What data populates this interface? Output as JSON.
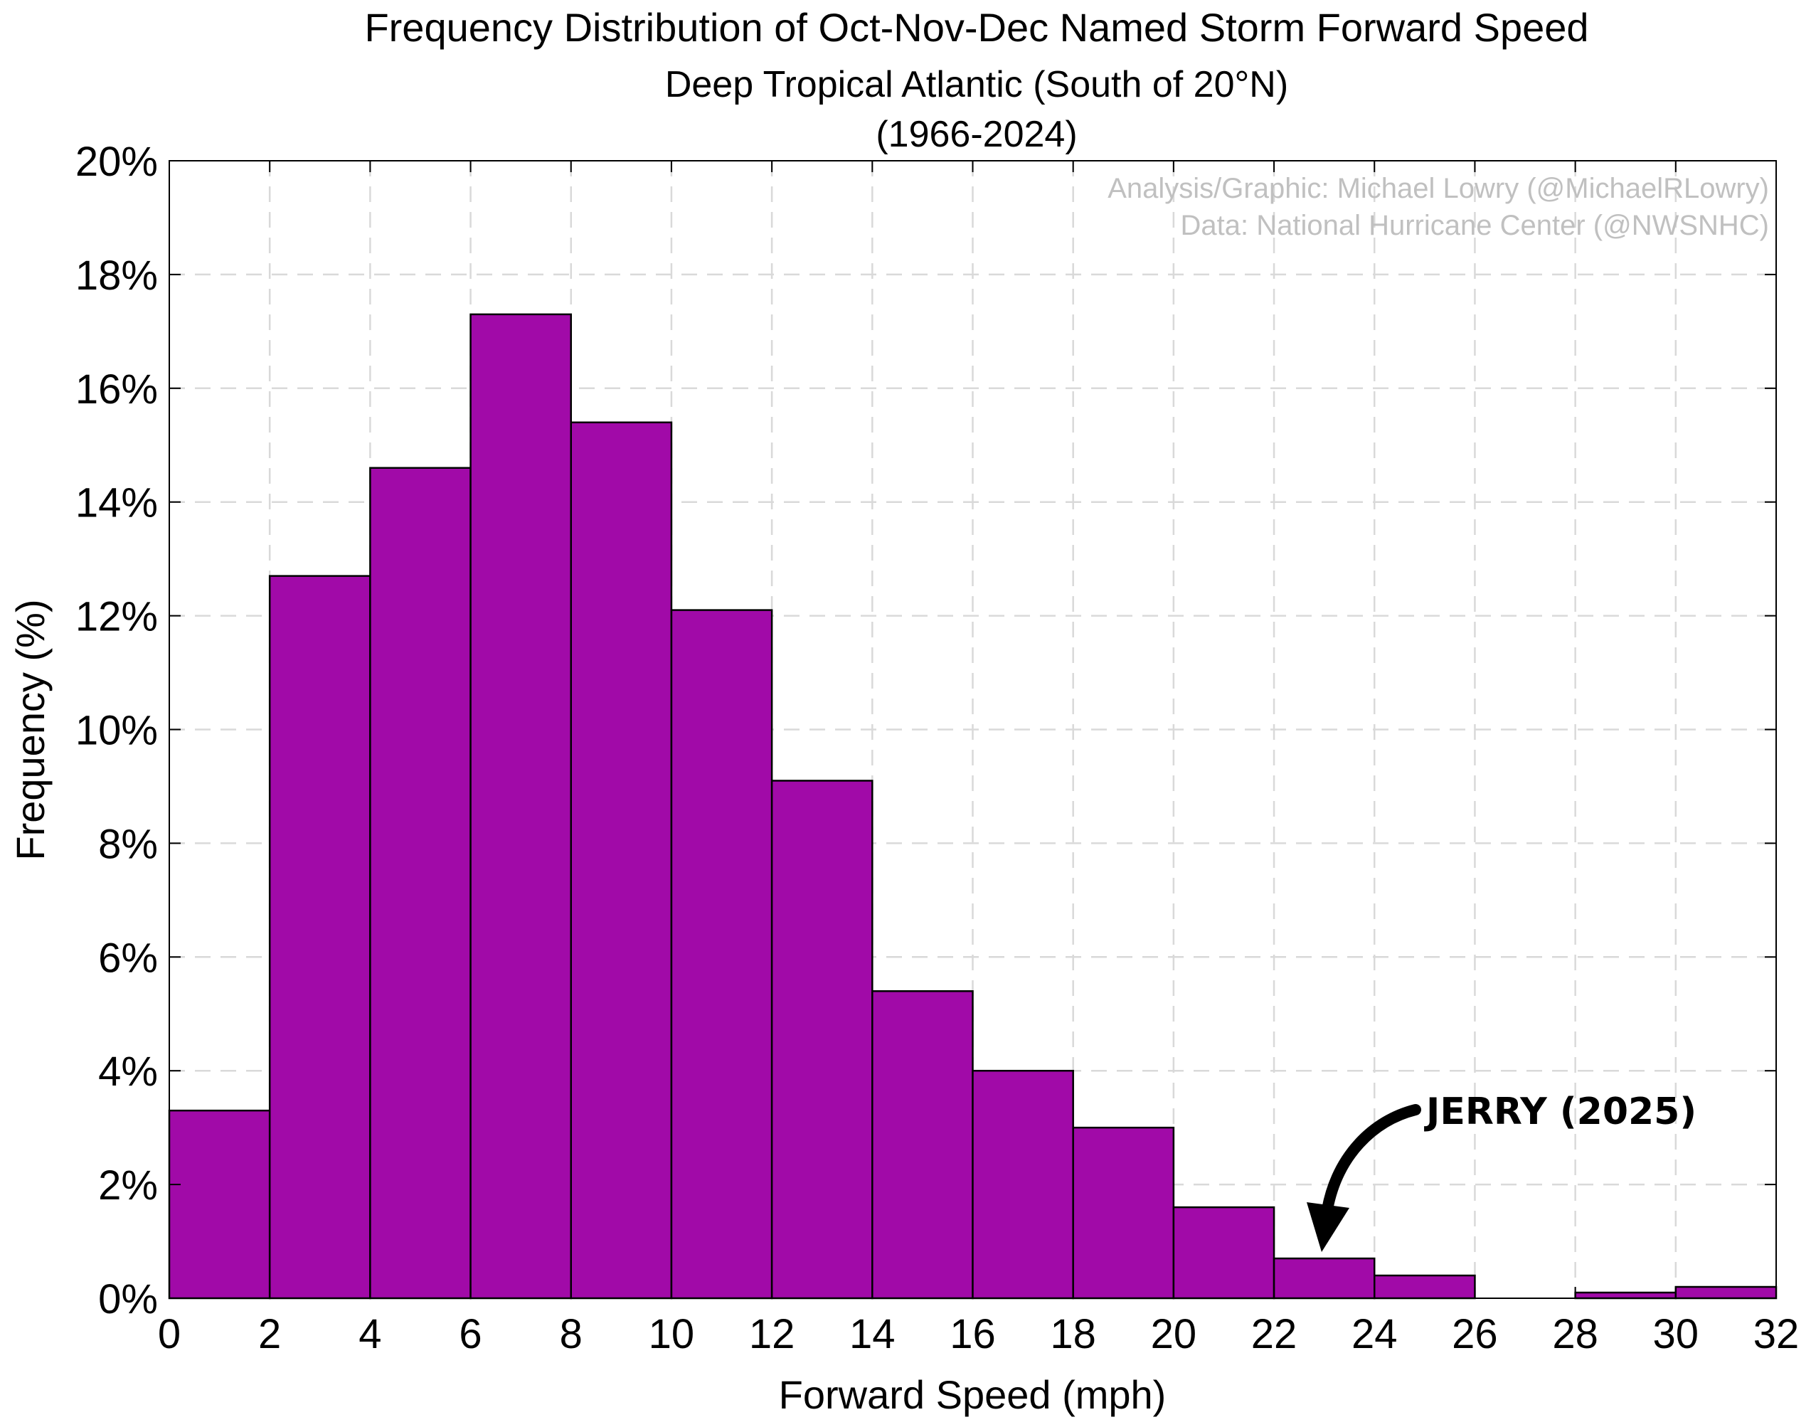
{
  "chart_data": {
    "type": "bar",
    "title": "Frequency Distribution of Oct-Nov-Dec Named Storm Forward Speed",
    "subtitle": "Deep Tropical Atlantic (South of 20°N)",
    "period": "(1966-2024)",
    "xlabel": "Forward Speed (mph)",
    "ylabel": "Frequency (%)",
    "bin_edges": [
      0,
      2,
      4,
      6,
      8,
      10,
      12,
      14,
      16,
      18,
      20,
      22,
      24,
      26,
      28,
      30,
      32
    ],
    "values": [
      3.3,
      12.7,
      14.6,
      17.3,
      15.4,
      12.1,
      9.1,
      5.4,
      4.0,
      3.0,
      1.6,
      0.7,
      0.4,
      0.0,
      0.1,
      0.2
    ],
    "xlim": [
      0,
      32
    ],
    "ylim": [
      0,
      20
    ],
    "xticks": [
      0,
      2,
      4,
      6,
      8,
      10,
      12,
      14,
      16,
      18,
      20,
      22,
      24,
      26,
      28,
      30,
      32
    ],
    "yticks": [
      0,
      2,
      4,
      6,
      8,
      10,
      12,
      14,
      16,
      18,
      20
    ],
    "ytick_suffix": "%",
    "grid": true,
    "bar_color": "#a10aa8",
    "bar_edge_color": "#000000",
    "grid_color": "#d9d9d9",
    "credit_lines": [
      "Analysis/Graphic: Michael Lowry (@MichaelRLowry)",
      "Data: National Hurricane Center (@NWSNHC)"
    ],
    "annotation": {
      "text": "JERRY (2025)",
      "points_to_speed_mph": 23
    }
  }
}
